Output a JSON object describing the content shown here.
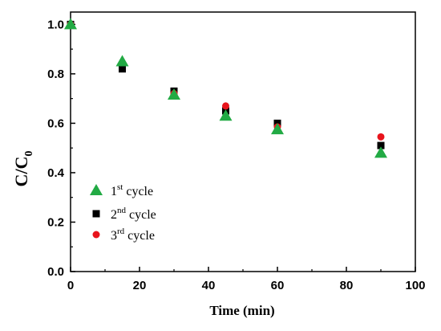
{
  "chart_data": {
    "type": "scatter",
    "title": "",
    "xlabel": "Time (min)",
    "ylabel": {
      "main": "C/C",
      "sub": "0"
    },
    "xlim": [
      0,
      100
    ],
    "ylim": [
      0,
      1.05
    ],
    "x_ticks": [
      0,
      20,
      40,
      60,
      80,
      100
    ],
    "y_ticks": [
      0.0,
      0.2,
      0.4,
      0.6,
      0.8,
      1.0
    ],
    "grid": false,
    "legend_position": "lower-left",
    "series": [
      {
        "name": {
          "main": "1",
          "sup": "st",
          "rest": " cycle"
        },
        "marker": "triangle",
        "color": "#22aa44",
        "x": [
          0,
          15,
          30,
          45,
          60,
          90
        ],
        "y": [
          1.0,
          0.85,
          0.715,
          0.63,
          0.575,
          0.48
        ]
      },
      {
        "name": {
          "main": "2",
          "sup": "nd",
          "rest": " cycle"
        },
        "marker": "square",
        "color": "#000000",
        "x": [
          0,
          15,
          30,
          45,
          60,
          90
        ],
        "y": [
          1.0,
          0.82,
          0.73,
          0.65,
          0.6,
          0.51
        ]
      },
      {
        "name": {
          "main": "3",
          "sup": "rd",
          "rest": " cycle"
        },
        "marker": "circle",
        "color": "#e8141c",
        "x": [
          0,
          15,
          30,
          45,
          60,
          90
        ],
        "y": [
          1.0,
          0.845,
          0.72,
          0.67,
          0.585,
          0.545
        ]
      }
    ]
  }
}
